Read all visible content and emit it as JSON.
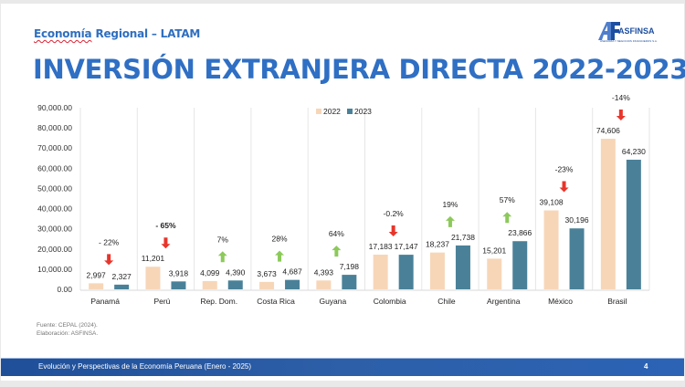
{
  "header": {
    "subtitle_a": "Economía",
    "subtitle_b": " Regional – LATAM",
    "title": "INVERSIÓN EXTRANJERA DIRECTA 2022-2023",
    "logo_text": "ASFINSA",
    "logo_sub": "ASESORIA Y NEGOCIOS FINANCIEROS S.A."
  },
  "colors": {
    "title": "#2f6fc4",
    "series_2022": "#f7d6b8",
    "series_2023": "#4a8199",
    "arrow_up": "#8cc95a",
    "arrow_down": "#e8352b",
    "footer": "#2d5fa8"
  },
  "chart_data": {
    "type": "bar",
    "title": "",
    "xlabel": "",
    "ylabel": "",
    "ylim": [
      0,
      90000
    ],
    "yticks": [
      "0.00",
      "10,000.00",
      "20,000.00",
      "30,000.00",
      "40,000.00",
      "50,000.00",
      "60,000.00",
      "70,000.00",
      "80,000.00",
      "90,000.00"
    ],
    "legend": {
      "position": "top-center",
      "entries": [
        "2022",
        "2023"
      ]
    },
    "grid": false,
    "categories": [
      "Panamá",
      "Perú",
      "Rep. Dom.",
      "Costa Rica",
      "Guyana",
      "Colombia",
      "Chile",
      "Argentina",
      "México",
      "Brasil"
    ],
    "series": [
      {
        "name": "2022",
        "values": [
          2997,
          11201,
          4099,
          3673,
          4393,
          17183,
          18237,
          15201,
          39108,
          74606
        ],
        "labels": [
          "2,997",
          "11,201",
          "4,099",
          "3,673",
          "4,393",
          "17,183",
          "18,237",
          "15,201",
          "39,108",
          "74,606"
        ]
      },
      {
        "name": "2023",
        "values": [
          2327,
          3918,
          4390,
          4687,
          7198,
          17147,
          21738,
          23866,
          30196,
          64230
        ],
        "labels": [
          "2,327",
          "3,918",
          "4,390",
          "4,687",
          "7,198",
          "17,147",
          "21,738",
          "23,866",
          "30,196",
          "64,230"
        ]
      }
    ],
    "annotations": [
      {
        "category": "Panamá",
        "text": "- 22%",
        "direction": "down",
        "bold": false
      },
      {
        "category": "Perú",
        "text": "- 65%",
        "direction": "down",
        "bold": true
      },
      {
        "category": "Rep. Dom.",
        "text": "7%",
        "direction": "up",
        "bold": false
      },
      {
        "category": "Costa Rica",
        "text": "28%",
        "direction": "up",
        "bold": false
      },
      {
        "category": "Guyana",
        "text": "64%",
        "direction": "up",
        "bold": false
      },
      {
        "category": "Colombia",
        "text": "-0.2%",
        "direction": "down",
        "bold": false
      },
      {
        "category": "Chile",
        "text": "19%",
        "direction": "up",
        "bold": false
      },
      {
        "category": "Argentina",
        "text": "57%",
        "direction": "up",
        "bold": false
      },
      {
        "category": "México",
        "text": "-23%",
        "direction": "down",
        "bold": false
      },
      {
        "category": "Brasil",
        "text": "-14%",
        "direction": "down",
        "bold": false
      }
    ]
  },
  "source": {
    "line1": "Fuente: CEPAL (2024).",
    "line2": "Elaboración: ASFINSA."
  },
  "footer": {
    "text": "Evolución y Perspectivas de la Economía Peruana (Enero - 2025)",
    "page": "4"
  }
}
